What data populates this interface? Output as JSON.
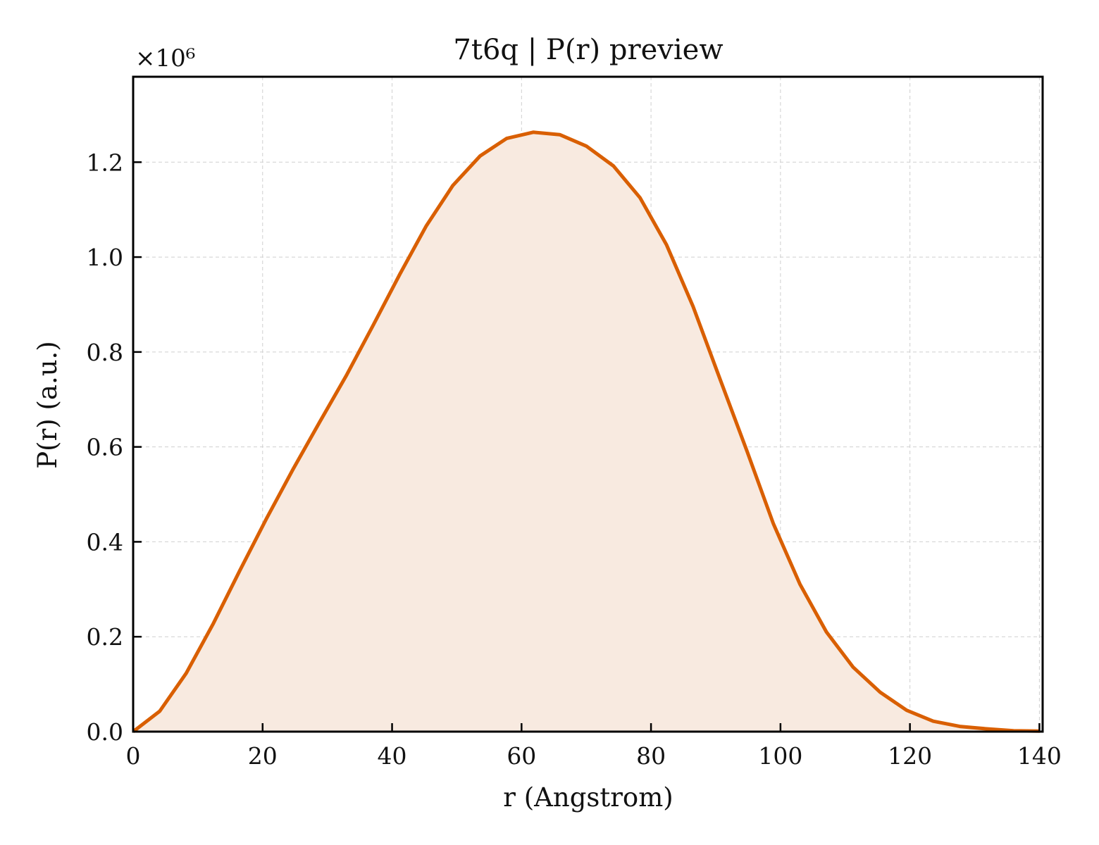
{
  "chart_data": {
    "type": "area",
    "title": "7t6q | P(r) preview",
    "xlabel": "r (Angstrom)",
    "ylabel": "P(r) (a.u.)",
    "y_multiplier_label": "×10⁶",
    "xlim": [
      0,
      140.5
    ],
    "ylim": [
      0,
      1.38
    ],
    "x_ticks": [
      0,
      20,
      40,
      60,
      80,
      100,
      120,
      140
    ],
    "x_tick_labels": [
      "0",
      "20",
      "40",
      "60",
      "80",
      "100",
      "120",
      "140"
    ],
    "y_ticks": [
      0.0,
      0.2,
      0.4,
      0.6,
      0.8,
      1.0,
      1.2
    ],
    "y_tick_labels": [
      "0.0",
      "0.2",
      "0.4",
      "0.6",
      "0.8",
      "1.0",
      "1.2"
    ],
    "grid": true,
    "line_color": "#d95f02",
    "fill_color": "#f8eae0",
    "series": [
      {
        "x": [
          0,
          4.1,
          8.2,
          12.4,
          16.5,
          20.6,
          24.7,
          28.8,
          33.0,
          37.1,
          41.2,
          45.3,
          49.4,
          53.6,
          57.7,
          61.8,
          65.9,
          70.0,
          74.2,
          78.3,
          82.4,
          86.5,
          90.6,
          94.8,
          98.9,
          103.0,
          107.1,
          111.2,
          115.4,
          119.5,
          123.6,
          127.7,
          131.8,
          136.0,
          140.1
        ],
        "y": [
          0.0,
          0.043,
          0.123,
          0.228,
          0.34,
          0.449,
          0.553,
          0.652,
          0.752,
          0.857,
          0.964,
          1.066,
          1.151,
          1.213,
          1.25,
          1.263,
          1.258,
          1.234,
          1.192,
          1.125,
          1.026,
          0.896,
          0.745,
          0.592,
          0.438,
          0.311,
          0.21,
          0.136,
          0.083,
          0.045,
          0.022,
          0.011,
          0.006,
          0.002,
          0.001
        ]
      }
    ]
  }
}
